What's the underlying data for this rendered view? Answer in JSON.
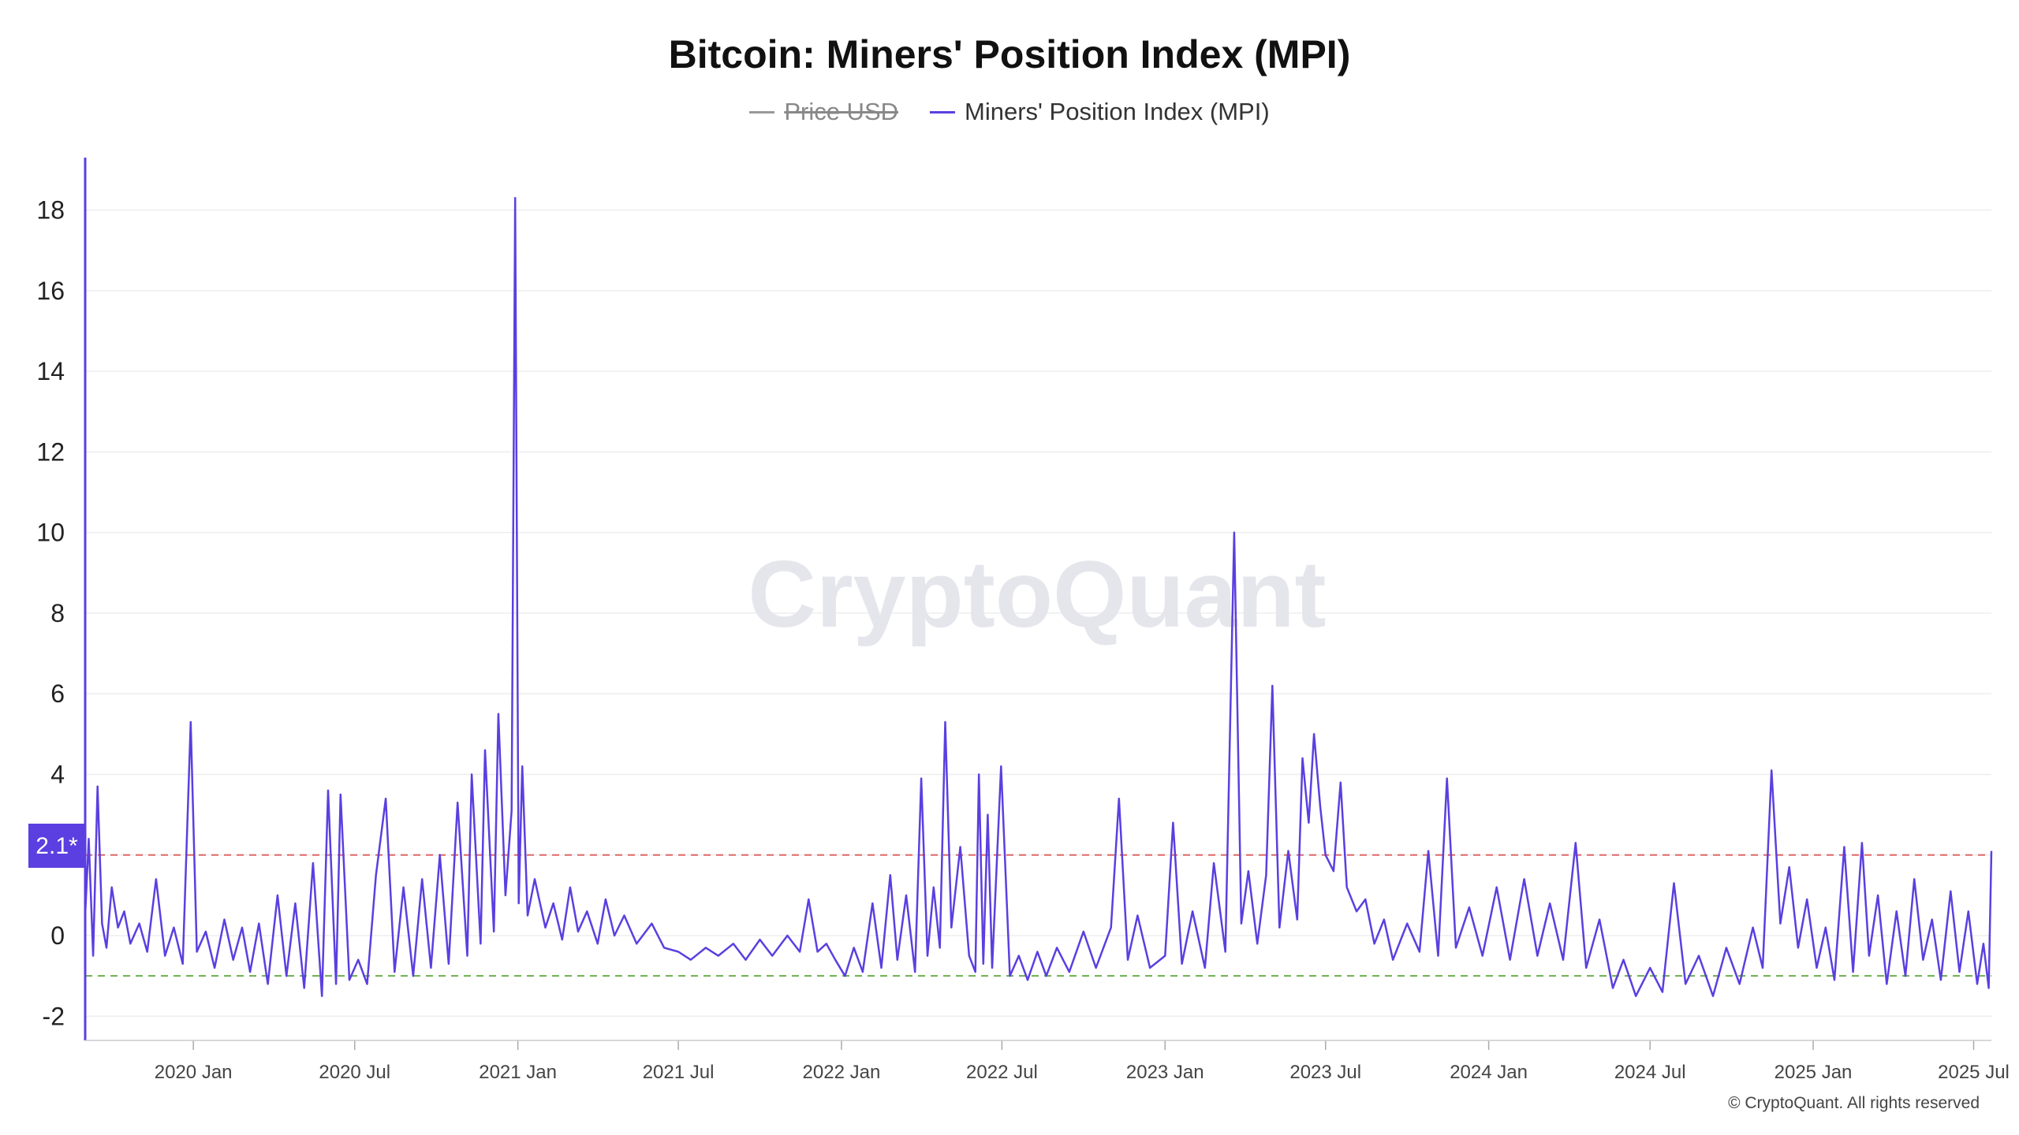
{
  "chart_data": {
    "type": "line",
    "title": "Bitcoin: Miners' Position Index (MPI)",
    "legend": [
      {
        "name": "Price USD",
        "color": "#999999",
        "hidden": true
      },
      {
        "name": "Miners' Position Index (MPI)",
        "color": "#5b3fe0",
        "hidden": false
      }
    ],
    "legend_placement": "top-center",
    "watermark": "CryptoQuant",
    "copyright": "© CryptoQuant. All rights reserved",
    "current_value_label": "2.1*",
    "y_ticks": [
      -2,
      0,
      2,
      4,
      6,
      8,
      10,
      12,
      14,
      16,
      18
    ],
    "y_tick_labels": [
      "-2",
      "0",
      "",
      "4",
      "6",
      "8",
      "10",
      "12",
      "14",
      "16",
      "18"
    ],
    "ylim": [
      -2.6,
      19.3
    ],
    "x_ticks": [
      "2020-01-01",
      "2020-07-01",
      "2021-01-01",
      "2021-07-01",
      "2022-01-01",
      "2022-07-01",
      "2023-01-01",
      "2023-07-01",
      "2024-01-01",
      "2024-07-01",
      "2025-01-01",
      "2025-07-01"
    ],
    "x_tick_labels": [
      "2020 Jan",
      "2020 Jul",
      "2021 Jan",
      "2021 Jul",
      "2022 Jan",
      "2022 Jul",
      "2023 Jan",
      "2023 Jul",
      "2024 Jan",
      "2024 Jul",
      "2025 Jan",
      "2025 Jul"
    ],
    "xlim": [
      "2019-09-01",
      "2025-07-21"
    ],
    "reference_lines": [
      {
        "value": 2,
        "color": "#e06666",
        "style": "dashed"
      },
      {
        "value": -1,
        "color": "#6ab04c",
        "style": "dashed"
      }
    ],
    "grid": true,
    "series": [
      {
        "name": "Miners' Position Index (MPI)",
        "color": "#5b3fe0",
        "points": [
          [
            "2019-09-01",
            0.5
          ],
          [
            "2019-09-05",
            2.4
          ],
          [
            "2019-09-10",
            -0.5
          ],
          [
            "2019-09-15",
            3.7
          ],
          [
            "2019-09-20",
            0.3
          ],
          [
            "2019-09-25",
            -0.3
          ],
          [
            "2019-10-01",
            1.2
          ],
          [
            "2019-10-08",
            0.2
          ],
          [
            "2019-10-15",
            0.6
          ],
          [
            "2019-10-22",
            -0.2
          ],
          [
            "2019-11-01",
            0.3
          ],
          [
            "2019-11-10",
            -0.4
          ],
          [
            "2019-11-20",
            1.4
          ],
          [
            "2019-11-30",
            -0.5
          ],
          [
            "2019-12-10",
            0.2
          ],
          [
            "2019-12-20",
            -0.7
          ],
          [
            "2019-12-29",
            5.3
          ],
          [
            "2020-01-05",
            -0.4
          ],
          [
            "2020-01-15",
            0.1
          ],
          [
            "2020-01-25",
            -0.8
          ],
          [
            "2020-02-05",
            0.4
          ],
          [
            "2020-02-15",
            -0.6
          ],
          [
            "2020-02-25",
            0.2
          ],
          [
            "2020-03-05",
            -0.9
          ],
          [
            "2020-03-15",
            0.3
          ],
          [
            "2020-03-25",
            -1.2
          ],
          [
            "2020-04-05",
            1.0
          ],
          [
            "2020-04-15",
            -1.0
          ],
          [
            "2020-04-25",
            0.8
          ],
          [
            "2020-05-05",
            -1.3
          ],
          [
            "2020-05-15",
            1.8
          ],
          [
            "2020-05-25",
            -1.5
          ],
          [
            "2020-06-01",
            3.6
          ],
          [
            "2020-06-10",
            -1.2
          ],
          [
            "2020-06-15",
            3.5
          ],
          [
            "2020-06-25",
            -1.1
          ],
          [
            "2020-07-05",
            -0.6
          ],
          [
            "2020-07-15",
            -1.2
          ],
          [
            "2020-07-25",
            1.5
          ],
          [
            "2020-08-05",
            3.4
          ],
          [
            "2020-08-15",
            -0.9
          ],
          [
            "2020-08-25",
            1.2
          ],
          [
            "2020-09-05",
            -1.0
          ],
          [
            "2020-09-15",
            1.4
          ],
          [
            "2020-09-25",
            -0.8
          ],
          [
            "2020-10-05",
            2.0
          ],
          [
            "2020-10-15",
            -0.7
          ],
          [
            "2020-10-25",
            3.3
          ],
          [
            "2020-11-05",
            -0.5
          ],
          [
            "2020-11-10",
            4.0
          ],
          [
            "2020-11-20",
            -0.2
          ],
          [
            "2020-11-25",
            4.6
          ],
          [
            "2020-12-05",
            0.1
          ],
          [
            "2020-12-10",
            5.5
          ],
          [
            "2020-12-18",
            1.0
          ],
          [
            "2020-12-25",
            3.1
          ],
          [
            "2020-12-29",
            18.3
          ],
          [
            "2021-01-02",
            0.8
          ],
          [
            "2021-01-06",
            4.2
          ],
          [
            "2021-01-12",
            0.5
          ],
          [
            "2021-01-20",
            1.4
          ],
          [
            "2021-02-01",
            0.2
          ],
          [
            "2021-02-10",
            0.8
          ],
          [
            "2021-02-20",
            -0.1
          ],
          [
            "2021-03-01",
            1.2
          ],
          [
            "2021-03-10",
            0.1
          ],
          [
            "2021-03-20",
            0.6
          ],
          [
            "2021-04-01",
            -0.2
          ],
          [
            "2021-04-10",
            0.9
          ],
          [
            "2021-04-20",
            0.0
          ],
          [
            "2021-05-01",
            0.5
          ],
          [
            "2021-05-15",
            -0.2
          ],
          [
            "2021-06-01",
            0.3
          ],
          [
            "2021-06-15",
            -0.3
          ],
          [
            "2021-07-01",
            -0.4
          ],
          [
            "2021-07-15",
            -0.6
          ],
          [
            "2021-08-01",
            -0.3
          ],
          [
            "2021-08-15",
            -0.5
          ],
          [
            "2021-09-01",
            -0.2
          ],
          [
            "2021-09-15",
            -0.6
          ],
          [
            "2021-10-01",
            -0.1
          ],
          [
            "2021-10-15",
            -0.5
          ],
          [
            "2021-11-01",
            0.0
          ],
          [
            "2021-11-15",
            -0.4
          ],
          [
            "2021-11-25",
            0.9
          ],
          [
            "2021-12-05",
            -0.4
          ],
          [
            "2021-12-15",
            -0.2
          ],
          [
            "2021-12-25",
            -0.6
          ],
          [
            "2022-01-05",
            -1.0
          ],
          [
            "2022-01-15",
            -0.3
          ],
          [
            "2022-01-25",
            -0.9
          ],
          [
            "2022-02-05",
            0.8
          ],
          [
            "2022-02-15",
            -0.8
          ],
          [
            "2022-02-25",
            1.5
          ],
          [
            "2022-03-05",
            -0.6
          ],
          [
            "2022-03-15",
            1.0
          ],
          [
            "2022-03-25",
            -0.9
          ],
          [
            "2022-04-01",
            3.9
          ],
          [
            "2022-04-08",
            -0.5
          ],
          [
            "2022-04-15",
            1.2
          ],
          [
            "2022-04-22",
            -0.3
          ],
          [
            "2022-04-28",
            5.3
          ],
          [
            "2022-05-05",
            0.2
          ],
          [
            "2022-05-15",
            2.2
          ],
          [
            "2022-05-25",
            -0.5
          ],
          [
            "2022-06-01",
            -0.9
          ],
          [
            "2022-06-05",
            4.0
          ],
          [
            "2022-06-10",
            -0.7
          ],
          [
            "2022-06-15",
            3.0
          ],
          [
            "2022-06-20",
            -0.8
          ],
          [
            "2022-06-30",
            4.2
          ],
          [
            "2022-07-10",
            -1.0
          ],
          [
            "2022-07-20",
            -0.5
          ],
          [
            "2022-07-30",
            -1.1
          ],
          [
            "2022-08-10",
            -0.4
          ],
          [
            "2022-08-20",
            -1.0
          ],
          [
            "2022-09-01",
            -0.3
          ],
          [
            "2022-09-15",
            -0.9
          ],
          [
            "2022-10-01",
            0.1
          ],
          [
            "2022-10-15",
            -0.8
          ],
          [
            "2022-11-01",
            0.2
          ],
          [
            "2022-11-10",
            3.4
          ],
          [
            "2022-11-20",
            -0.6
          ],
          [
            "2022-12-01",
            0.5
          ],
          [
            "2022-12-15",
            -0.8
          ],
          [
            "2023-01-01",
            -0.5
          ],
          [
            "2023-01-10",
            2.8
          ],
          [
            "2023-01-20",
            -0.7
          ],
          [
            "2023-02-01",
            0.6
          ],
          [
            "2023-02-15",
            -0.8
          ],
          [
            "2023-02-25",
            1.8
          ],
          [
            "2023-03-10",
            -0.4
          ],
          [
            "2023-03-20",
            10.0
          ],
          [
            "2023-03-28",
            0.3
          ],
          [
            "2023-04-05",
            1.6
          ],
          [
            "2023-04-15",
            -0.2
          ],
          [
            "2023-04-25",
            1.5
          ],
          [
            "2023-05-02",
            6.2
          ],
          [
            "2023-05-10",
            0.2
          ],
          [
            "2023-05-20",
            2.1
          ],
          [
            "2023-05-30",
            0.4
          ],
          [
            "2023-06-05",
            4.4
          ],
          [
            "2023-06-12",
            2.8
          ],
          [
            "2023-06-18",
            5.0
          ],
          [
            "2023-06-25",
            3.2
          ],
          [
            "2023-07-01",
            2.0
          ],
          [
            "2023-07-10",
            1.6
          ],
          [
            "2023-07-18",
            3.8
          ],
          [
            "2023-07-25",
            1.2
          ],
          [
            "2023-08-05",
            0.6
          ],
          [
            "2023-08-15",
            0.9
          ],
          [
            "2023-08-25",
            -0.2
          ],
          [
            "2023-09-05",
            0.4
          ],
          [
            "2023-09-15",
            -0.6
          ],
          [
            "2023-10-01",
            0.3
          ],
          [
            "2023-10-15",
            -0.4
          ],
          [
            "2023-10-25",
            2.1
          ],
          [
            "2023-11-05",
            -0.5
          ],
          [
            "2023-11-15",
            3.9
          ],
          [
            "2023-11-25",
            -0.3
          ],
          [
            "2023-12-10",
            0.7
          ],
          [
            "2023-12-25",
            -0.5
          ],
          [
            "2024-01-10",
            1.2
          ],
          [
            "2024-01-25",
            -0.6
          ],
          [
            "2024-02-10",
            1.4
          ],
          [
            "2024-02-25",
            -0.5
          ],
          [
            "2024-03-10",
            0.8
          ],
          [
            "2024-03-25",
            -0.6
          ],
          [
            "2024-04-08",
            2.3
          ],
          [
            "2024-04-20",
            -0.8
          ],
          [
            "2024-05-05",
            0.4
          ],
          [
            "2024-05-20",
            -1.3
          ],
          [
            "2024-06-01",
            -0.6
          ],
          [
            "2024-06-15",
            -1.5
          ],
          [
            "2024-07-01",
            -0.8
          ],
          [
            "2024-07-15",
            -1.4
          ],
          [
            "2024-07-28",
            1.3
          ],
          [
            "2024-08-10",
            -1.2
          ],
          [
            "2024-08-25",
            -0.5
          ],
          [
            "2024-09-10",
            -1.5
          ],
          [
            "2024-09-25",
            -0.3
          ],
          [
            "2024-10-10",
            -1.2
          ],
          [
            "2024-10-25",
            0.2
          ],
          [
            "2024-11-05",
            -0.8
          ],
          [
            "2024-11-15",
            4.1
          ],
          [
            "2024-11-25",
            0.3
          ],
          [
            "2024-12-05",
            1.7
          ],
          [
            "2024-12-15",
            -0.3
          ],
          [
            "2024-12-25",
            0.9
          ],
          [
            "2025-01-05",
            -0.8
          ],
          [
            "2025-01-15",
            0.2
          ],
          [
            "2025-01-25",
            -1.1
          ],
          [
            "2025-02-05",
            2.2
          ],
          [
            "2025-02-15",
            -0.9
          ],
          [
            "2025-02-25",
            2.3
          ],
          [
            "2025-03-05",
            -0.5
          ],
          [
            "2025-03-15",
            1.0
          ],
          [
            "2025-03-25",
            -1.2
          ],
          [
            "2025-04-05",
            0.6
          ],
          [
            "2025-04-15",
            -1.0
          ],
          [
            "2025-04-25",
            1.4
          ],
          [
            "2025-05-05",
            -0.6
          ],
          [
            "2025-05-15",
            0.4
          ],
          [
            "2025-05-25",
            -1.1
          ],
          [
            "2025-06-05",
            1.1
          ],
          [
            "2025-06-15",
            -0.9
          ],
          [
            "2025-06-25",
            0.6
          ],
          [
            "2025-07-05",
            -1.2
          ],
          [
            "2025-07-12",
            -0.2
          ],
          [
            "2025-07-18",
            -1.3
          ],
          [
            "2025-07-21",
            2.1
          ]
        ]
      }
    ]
  }
}
